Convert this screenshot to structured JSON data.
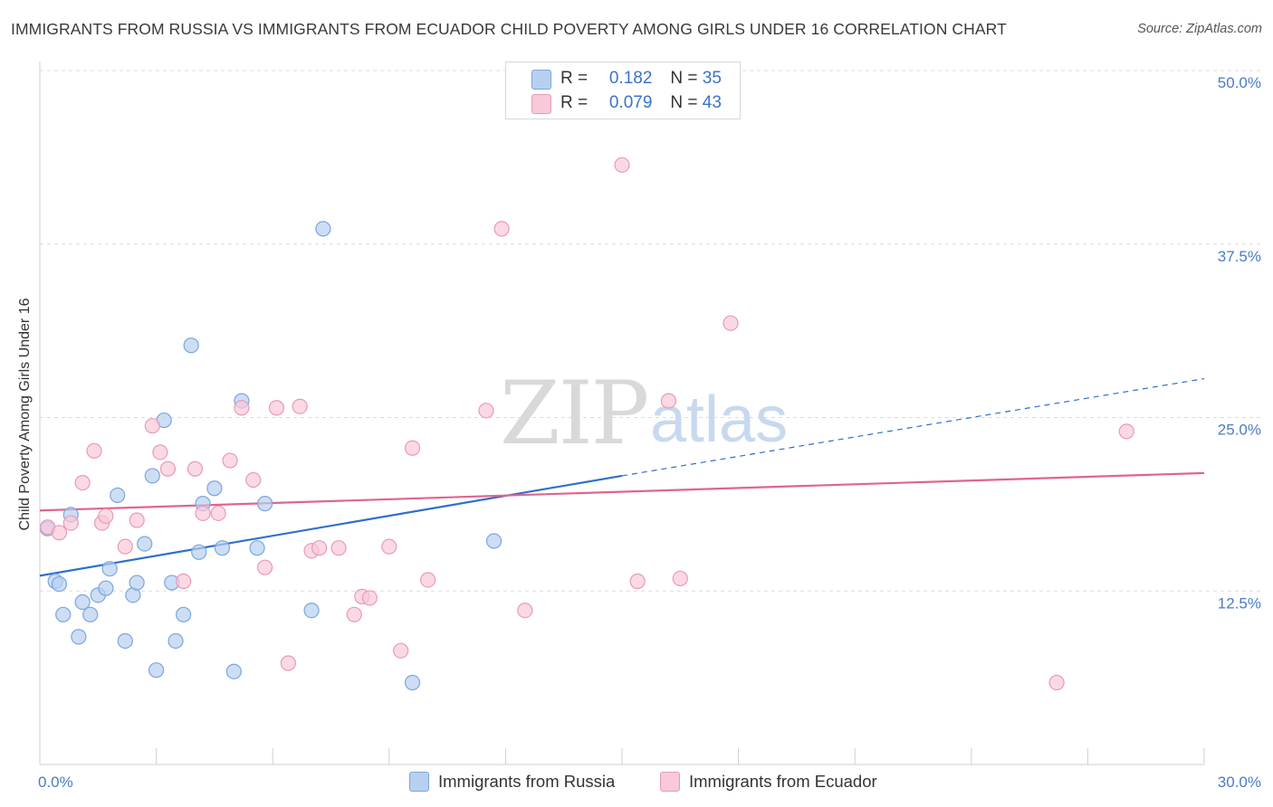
{
  "title": "IMMIGRANTS FROM RUSSIA VS IMMIGRANTS FROM ECUADOR CHILD POVERTY AMONG GIRLS UNDER 16 CORRELATION CHART",
  "source": "Source: ZipAtlas.com",
  "watermark": {
    "zip": "ZIP",
    "atlas": "atlas"
  },
  "colors": {
    "russia_fill": "#b8d0f0",
    "russia_stroke": "#7aa6de",
    "russia_line": "#2f6fcc",
    "ecuador_fill": "#f8c9d8",
    "ecuador_stroke": "#e99ab5",
    "ecuador_line": "#e0648f",
    "tick_text": "#4a7cc4"
  },
  "legend": {
    "rows": [
      {
        "r_label": "R =",
        "r_value": "0.182",
        "n_label": "N =",
        "n_value": "35",
        "series": "russia"
      },
      {
        "r_label": "R =",
        "r_value": "0.079",
        "n_label": "N =",
        "n_value": "43",
        "series": "ecuador"
      }
    ]
  },
  "bottom_legend": [
    "Immigrants from Russia",
    "Immigrants from Ecuador"
  ],
  "chart_data": {
    "type": "scatter",
    "title": "IMMIGRANTS FROM RUSSIA VS IMMIGRANTS FROM ECUADOR CHILD POVERTY AMONG GIRLS UNDER 16 CORRELATION CHART",
    "xlabel": "",
    "ylabel": "Child Poverty Among Girls Under 16",
    "xlim": [
      0,
      30
    ],
    "ylim": [
      0,
      50
    ],
    "x_tick_labels": [
      "0.0%",
      "30.0%"
    ],
    "y_ticks": [
      12.5,
      25.0,
      37.5,
      50.0
    ],
    "y_tick_labels": [
      "12.5%",
      "25.0%",
      "37.5%",
      "50.0%"
    ],
    "grid": "horizontal dashed",
    "legend_position": "top-center",
    "series": [
      {
        "name": "Immigrants from Russia",
        "R": 0.182,
        "N": 35,
        "trend": {
          "x0": 0,
          "y0": 13.6,
          "x1": 15,
          "y1": 20.8,
          "dashed_to_x": 30,
          "dashed_to_y": 27.8
        },
        "points": [
          [
            0.2,
            17.0
          ],
          [
            0.4,
            13.2
          ],
          [
            0.5,
            13.0
          ],
          [
            0.6,
            10.8
          ],
          [
            0.8,
            18.0
          ],
          [
            1.0,
            9.2
          ],
          [
            1.1,
            11.7
          ],
          [
            1.3,
            10.8
          ],
          [
            1.5,
            12.2
          ],
          [
            1.7,
            12.7
          ],
          [
            1.8,
            14.1
          ],
          [
            2.0,
            19.4
          ],
          [
            2.2,
            8.9
          ],
          [
            2.4,
            12.2
          ],
          [
            2.5,
            13.1
          ],
          [
            2.7,
            15.9
          ],
          [
            2.9,
            20.8
          ],
          [
            3.0,
            6.8
          ],
          [
            3.2,
            24.8
          ],
          [
            3.4,
            13.1
          ],
          [
            3.5,
            8.9
          ],
          [
            3.7,
            10.8
          ],
          [
            3.9,
            30.2
          ],
          [
            4.1,
            15.3
          ],
          [
            4.2,
            18.8
          ],
          [
            4.5,
            19.9
          ],
          [
            4.7,
            15.6
          ],
          [
            5.0,
            6.7
          ],
          [
            5.2,
            26.2
          ],
          [
            5.6,
            15.6
          ],
          [
            5.8,
            18.8
          ],
          [
            7.0,
            11.1
          ],
          [
            7.3,
            38.6
          ],
          [
            9.6,
            5.9
          ],
          [
            11.7,
            16.1
          ]
        ]
      },
      {
        "name": "Immigrants from Ecuador",
        "R": 0.079,
        "N": 43,
        "trend": {
          "x0": 0,
          "y0": 18.3,
          "x1": 30,
          "y1": 21.0
        },
        "points": [
          [
            0.2,
            17.1
          ],
          [
            0.5,
            16.7
          ],
          [
            0.8,
            17.4
          ],
          [
            1.1,
            20.3
          ],
          [
            1.4,
            22.6
          ],
          [
            1.6,
            17.4
          ],
          [
            1.7,
            17.9
          ],
          [
            2.2,
            15.7
          ],
          [
            2.5,
            17.6
          ],
          [
            2.9,
            24.4
          ],
          [
            3.1,
            22.5
          ],
          [
            3.3,
            21.3
          ],
          [
            3.7,
            13.2
          ],
          [
            4.0,
            21.3
          ],
          [
            4.2,
            18.1
          ],
          [
            4.6,
            18.1
          ],
          [
            4.9,
            21.9
          ],
          [
            5.2,
            25.7
          ],
          [
            5.5,
            20.5
          ],
          [
            5.8,
            14.2
          ],
          [
            6.1,
            25.7
          ],
          [
            6.4,
            7.3
          ],
          [
            6.7,
            25.8
          ],
          [
            7.0,
            15.4
          ],
          [
            7.2,
            15.6
          ],
          [
            7.7,
            15.6
          ],
          [
            8.1,
            10.8
          ],
          [
            8.3,
            12.1
          ],
          [
            8.5,
            12.0
          ],
          [
            9.0,
            15.7
          ],
          [
            9.3,
            8.2
          ],
          [
            9.6,
            22.8
          ],
          [
            10.0,
            13.3
          ],
          [
            11.5,
            25.5
          ],
          [
            11.9,
            38.6
          ],
          [
            12.5,
            11.1
          ],
          [
            15.0,
            43.2
          ],
          [
            15.4,
            13.2
          ],
          [
            16.2,
            26.2
          ],
          [
            16.5,
            13.4
          ],
          [
            17.8,
            31.8
          ],
          [
            26.2,
            5.9
          ],
          [
            28.0,
            24.0
          ]
        ]
      }
    ]
  }
}
